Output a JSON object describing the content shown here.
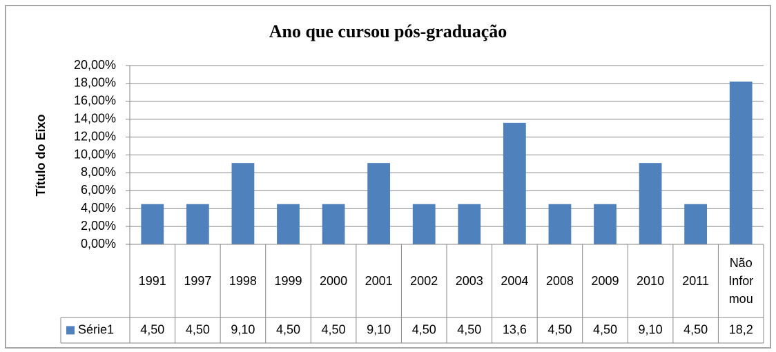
{
  "chart_data": {
    "type": "bar",
    "title": "Ano que cursou pós-graduação",
    "y_label": "Título do Eixo",
    "categories": [
      "1991",
      "1997",
      "1998",
      "1999",
      "2000",
      "2001",
      "2002",
      "2003",
      "2004",
      "2008",
      "2009",
      "2010",
      "2011",
      "Não Informou"
    ],
    "series": [
      {
        "name": "Série1",
        "color": "#4f81bd",
        "values": [
          4.5,
          4.5,
          9.1,
          4.5,
          4.5,
          9.1,
          4.5,
          4.5,
          13.6,
          4.5,
          4.5,
          9.1,
          4.5,
          18.2
        ],
        "value_labels": [
          "4,50",
          "4,50",
          "9,10",
          "4,50",
          "4,50",
          "9,10",
          "4,50",
          "4,50",
          "13,6",
          "4,50",
          "4,50",
          "9,10",
          "4,50",
          "18,2"
        ]
      }
    ],
    "ylim": [
      0,
      20
    ],
    "yticks": [
      {
        "value": 0,
        "label": "0,00%"
      },
      {
        "value": 2,
        "label": "2,00%"
      },
      {
        "value": 4,
        "label": "4,00%"
      },
      {
        "value": 6,
        "label": "6,00%"
      },
      {
        "value": 8,
        "label": "8,00%"
      },
      {
        "value": 10,
        "label": "10,00%"
      },
      {
        "value": 12,
        "label": "12,00%"
      },
      {
        "value": 14,
        "label": "14,00%"
      },
      {
        "value": 16,
        "label": "16,00%"
      },
      {
        "value": 18,
        "label": "18,00%"
      },
      {
        "value": 20,
        "label": "20,00%"
      }
    ],
    "grid": true,
    "data_table": true
  }
}
